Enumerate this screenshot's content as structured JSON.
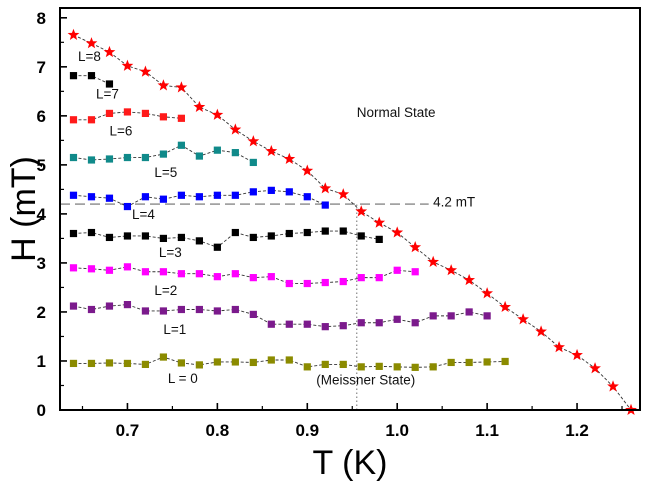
{
  "chart_data": {
    "type": "scatter",
    "xlabel": "T (K)",
    "ylabel": "H (mT)",
    "xlim": [
      0.625,
      1.27
    ],
    "ylim": [
      0,
      8.2
    ],
    "x_ticks": [
      0.7,
      0.8,
      0.9,
      1.0,
      1.1,
      1.2
    ],
    "x_tick_labels": [
      "0.7",
      "0.8",
      "0.9",
      "1.0",
      "1.1",
      "1.2"
    ],
    "y_ticks": [
      0,
      1,
      2,
      3,
      4,
      5,
      6,
      7,
      8
    ],
    "y_tick_labels": [
      "0",
      "1",
      "2",
      "3",
      "4",
      "5",
      "6",
      "7",
      "8"
    ],
    "grid": false,
    "series": [
      {
        "name": "L = 0",
        "color": "#8b8b00",
        "marker": "square",
        "x": [
          0.64,
          0.66,
          0.68,
          0.7,
          0.72,
          0.74,
          0.76,
          0.78,
          0.8,
          0.82,
          0.84,
          0.86,
          0.88,
          0.9,
          0.92,
          0.94,
          0.96,
          0.98,
          1.0,
          1.02,
          1.04,
          1.06,
          1.08,
          1.1,
          1.12
        ],
        "values": [
          0.95,
          0.95,
          0.96,
          0.95,
          0.93,
          1.08,
          0.96,
          0.92,
          0.98,
          0.98,
          0.97,
          1.02,
          1.02,
          0.88,
          0.93,
          0.93,
          0.88,
          0.89,
          0.88,
          0.87,
          0.88,
          0.97,
          0.97,
          0.98,
          0.99
        ]
      },
      {
        "name": "L=1",
        "color": "#7b1a8c",
        "marker": "square",
        "x": [
          0.64,
          0.66,
          0.68,
          0.7,
          0.72,
          0.74,
          0.76,
          0.78,
          0.8,
          0.82,
          0.84,
          0.86,
          0.88,
          0.9,
          0.92,
          0.94,
          0.96,
          0.98,
          1.0,
          1.02,
          1.04,
          1.06,
          1.08,
          1.1
        ],
        "values": [
          2.12,
          2.05,
          2.12,
          2.15,
          2.02,
          2.02,
          2.05,
          2.05,
          2.02,
          2.05,
          1.95,
          1.75,
          1.75,
          1.75,
          1.7,
          1.72,
          1.78,
          1.78,
          1.85,
          1.78,
          1.92,
          1.92,
          2.0,
          1.92
        ]
      },
      {
        "name": "L=2",
        "color": "#ff00ff",
        "marker": "square",
        "x": [
          0.64,
          0.66,
          0.68,
          0.7,
          0.72,
          0.74,
          0.76,
          0.78,
          0.8,
          0.82,
          0.84,
          0.86,
          0.88,
          0.9,
          0.92,
          0.94,
          0.96,
          0.98,
          1.0,
          1.02
        ],
        "values": [
          2.9,
          2.88,
          2.85,
          2.92,
          2.82,
          2.82,
          2.78,
          2.78,
          2.72,
          2.78,
          2.7,
          2.72,
          2.58,
          2.58,
          2.6,
          2.62,
          2.7,
          2.7,
          2.85,
          2.82
        ]
      },
      {
        "name": "L=3",
        "color": "#000000",
        "marker": "square",
        "x": [
          0.64,
          0.66,
          0.68,
          0.7,
          0.72,
          0.74,
          0.76,
          0.78,
          0.8,
          0.82,
          0.84,
          0.86,
          0.88,
          0.9,
          0.92,
          0.94,
          0.96,
          0.98
        ],
        "values": [
          3.6,
          3.62,
          3.52,
          3.55,
          3.55,
          3.5,
          3.52,
          3.45,
          3.32,
          3.62,
          3.52,
          3.55,
          3.6,
          3.62,
          3.65,
          3.65,
          3.55,
          3.48
        ]
      },
      {
        "name": "L=4",
        "color": "#0000ff",
        "marker": "square",
        "x": [
          0.64,
          0.66,
          0.68,
          0.7,
          0.72,
          0.74,
          0.76,
          0.78,
          0.8,
          0.82,
          0.84,
          0.86,
          0.88,
          0.9,
          0.92
        ],
        "values": [
          4.38,
          4.35,
          4.32,
          4.15,
          4.35,
          4.3,
          4.38,
          4.35,
          4.38,
          4.38,
          4.45,
          4.48,
          4.45,
          4.35,
          4.18
        ]
      },
      {
        "name": "L=5",
        "color": "#108a8a",
        "marker": "square",
        "x": [
          0.64,
          0.66,
          0.68,
          0.7,
          0.72,
          0.74,
          0.76,
          0.78,
          0.8,
          0.82,
          0.84
        ],
        "values": [
          5.15,
          5.1,
          5.12,
          5.15,
          5.15,
          5.22,
          5.4,
          5.18,
          5.3,
          5.25,
          5.05
        ]
      },
      {
        "name": "L=6",
        "color": "#ff1a1a",
        "marker": "square",
        "x": [
          0.64,
          0.66,
          0.68,
          0.7,
          0.72,
          0.74,
          0.76
        ],
        "values": [
          5.92,
          5.92,
          6.05,
          6.08,
          6.05,
          5.98,
          5.95
        ]
      },
      {
        "name": "L=7",
        "color": "#000000",
        "marker": "square",
        "x": [
          0.64,
          0.66,
          0.68
        ],
        "values": [
          6.82,
          6.82,
          6.65
        ]
      },
      {
        "name": "",
        "color": "#ff0000",
        "marker": "star",
        "x": [
          0.64,
          0.66,
          0.68,
          0.7,
          0.72,
          0.74,
          0.76,
          0.78,
          0.8,
          0.82,
          0.84,
          0.86,
          0.88,
          0.9,
          0.92,
          0.94,
          0.96,
          0.98,
          1.0,
          1.02,
          1.04,
          1.06,
          1.08,
          1.1,
          1.12,
          1.14,
          1.16,
          1.18,
          1.2,
          1.22,
          1.24,
          1.26
        ],
        "values": [
          7.65,
          7.48,
          7.3,
          7.02,
          6.9,
          6.62,
          6.58,
          6.18,
          6.02,
          5.72,
          5.48,
          5.28,
          5.12,
          4.88,
          4.52,
          4.4,
          4.05,
          3.82,
          3.62,
          3.32,
          3.02,
          2.85,
          2.65,
          2.38,
          2.1,
          1.85,
          1.6,
          1.28,
          1.12,
          0.85,
          0.48,
          0.0
        ]
      }
    ],
    "l_labels": [
      {
        "text": "L=8",
        "x": 0.645,
        "y": 7.12
      },
      {
        "text": "L=7",
        "x": 0.665,
        "y": 6.35
      },
      {
        "text": "L=6",
        "x": 0.68,
        "y": 5.6
      },
      {
        "text": "L=5",
        "x": 0.73,
        "y": 4.75
      },
      {
        "text": "L=4",
        "x": 0.705,
        "y": 3.9
      },
      {
        "text": "L=3",
        "x": 0.735,
        "y": 3.12
      },
      {
        "text": "L=2",
        "x": 0.73,
        "y": 2.35
      },
      {
        "text": "L=1",
        "x": 0.74,
        "y": 1.55
      },
      {
        "text": "L = 0",
        "x": 0.745,
        "y": 0.55
      }
    ],
    "annotations": [
      {
        "text": "Normal State",
        "x": 0.955,
        "y": 5.98
      },
      {
        "text": "(Meissner State)",
        "x": 0.91,
        "y": 0.52
      },
      {
        "text": "4.2 mT",
        "x": 1.04,
        "y": 4.15
      }
    ],
    "reference_lines": {
      "h_value": 4.2,
      "h_from": 0.625,
      "h_to": 1.035,
      "v_value": 0.955,
      "v_from": 0,
      "v_to": 4.2
    }
  }
}
